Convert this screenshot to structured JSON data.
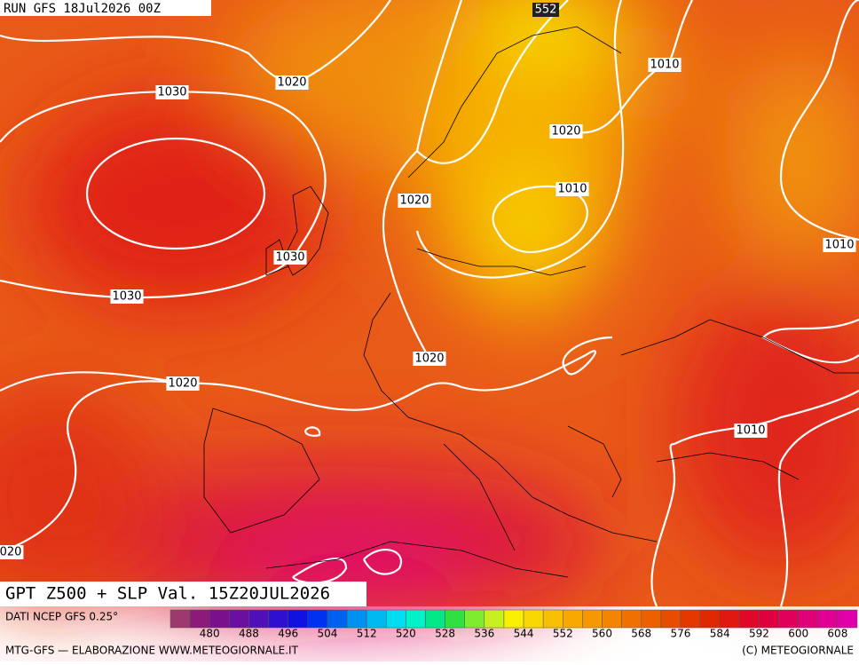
{
  "header": {
    "run": "RUN GFS 18Jul2026 00Z"
  },
  "map": {
    "contour_label": "552",
    "isobar_labels": [
      "1030",
      "1020",
      "1010",
      "1020",
      "1010",
      "1020",
      "1010",
      "1030",
      "1030",
      "1020",
      "1020",
      "1010",
      "020"
    ]
  },
  "footer": {
    "title": "GPT Z500 + SLP Val. 15Z20JUL2026",
    "source": "DATI NCEP GFS 0.25°",
    "credit_left": "MTG-GFS — ELABORAZIONE WWW.METEOGIORNALE.IT",
    "credit_right": "(C) METEOGIORNALE"
  },
  "legend": {
    "ticks": [
      480,
      488,
      496,
      504,
      512,
      520,
      528,
      536,
      544,
      552,
      560,
      568,
      576,
      584,
      592,
      600,
      608
    ],
    "colors": [
      "#9c3a6e",
      "#8c1a78",
      "#7a108c",
      "#6a10a0",
      "#5010b8",
      "#3010d0",
      "#1010e0",
      "#0030f0",
      "#0060f0",
      "#0090f0",
      "#00b8f0",
      "#00dcf0",
      "#00f0c8",
      "#00e888",
      "#30e040",
      "#80ec30",
      "#c8f020",
      "#f8f000",
      "#f8d800",
      "#f8c000",
      "#f8a800",
      "#f89800",
      "#f48400",
      "#f07000",
      "#ec6000",
      "#e84c00",
      "#e43800",
      "#e02800",
      "#e01810",
      "#e00828",
      "#e00040",
      "#e0005c",
      "#e00078",
      "#e00094",
      "#e000aa"
    ]
  }
}
